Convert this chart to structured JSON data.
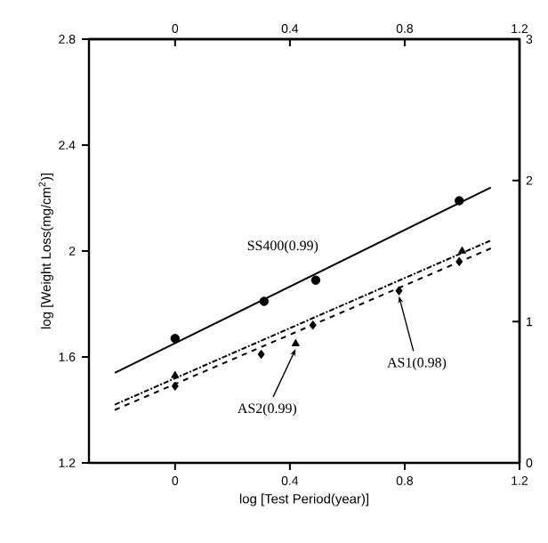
{
  "chart_data": {
    "type": "scatter",
    "xlabel": "log [Test Period(year)]",
    "ylabel": "log [Weight Loss(mg/cm$^{2}$)]",
    "xlim": [
      -0.3,
      1.2
    ],
    "xticks": [
      0,
      0.4,
      0.8,
      1.2
    ],
    "x2lim": [
      -0.3,
      1.2
    ],
    "x2ticks": [
      0,
      0.4,
      0.8,
      1.2
    ],
    "ylim": [
      1.2,
      2.8
    ],
    "yticks": [
      1.2,
      1.6,
      2,
      2.4,
      2.8
    ],
    "y2lim": [
      0,
      3
    ],
    "y2ticks": [
      0,
      1,
      2,
      3
    ],
    "grid": false,
    "series": [
      {
        "color": "#000000",
        "marker": "circle",
        "x": [
          0,
          0.31,
          0.49,
          0.99
        ],
        "values": [
          1.67,
          1.81,
          1.89,
          2.19
        ]
      },
      {
        "color": "#000000",
        "marker": "diamond",
        "x": [
          0,
          0.3,
          0.48,
          0.78,
          0.99
        ],
        "values": [
          1.49,
          1.61,
          1.72,
          1.85,
          1.96
        ]
      },
      {
        "color": "#000000",
        "marker": "triangle",
        "x": [
          0,
          0.42,
          1.0
        ],
        "values": [
          1.53,
          1.65,
          2.0
        ]
      },
      {
        "type": "line",
        "color": "#000000",
        "line_style": "solid",
        "marker": "none",
        "x": [
          -0.21,
          1.1
        ],
        "values": [
          1.54,
          2.24
        ]
      },
      {
        "type": "line",
        "color": "#000000",
        "line_style": "dashed",
        "marker": "none",
        "x": [
          -0.21,
          1.1
        ],
        "values": [
          1.4,
          2.01
        ]
      },
      {
        "type": "line",
        "color": "#000000",
        "line_style": "dotted",
        "marker": "none",
        "x": [
          -0.21,
          1.1
        ],
        "values": [
          1.42,
          2.04
        ]
      }
    ],
    "annotations": [
      "SS400(0.99)",
      {
        "text": "AS1(0.98)",
        "x": 0.78,
        "y": 1.85
      },
      {
        "text": "AS2(0.99)",
        "x": 0.42,
        "y": 1.65
      }
    ]
  }
}
